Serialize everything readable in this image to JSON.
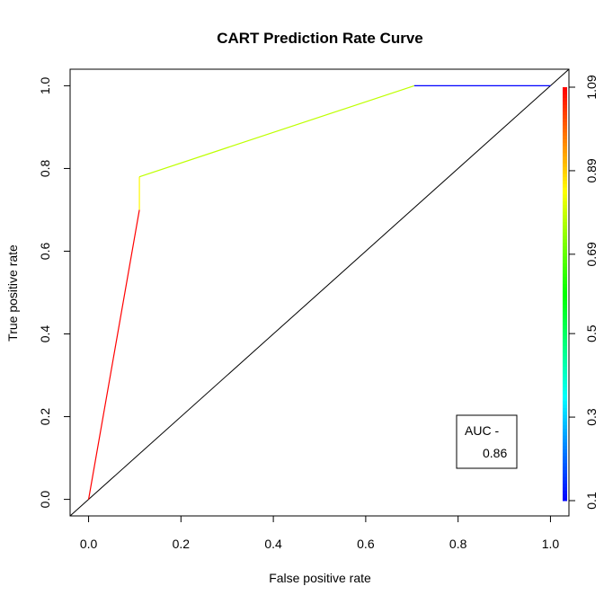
{
  "chart_data": {
    "type": "line",
    "title": "CART Prediction Rate Curve",
    "xlabel": "False positive rate",
    "ylabel": "True positive rate",
    "xlim": [
      -0.04,
      1.04
    ],
    "ylim": [
      -0.04,
      1.04
    ],
    "x_ticks": [
      0.0,
      0.2,
      0.4,
      0.6,
      0.8,
      1.0
    ],
    "x_tick_labels": [
      "0.0",
      "0.2",
      "0.4",
      "0.6",
      "0.8",
      "1.0"
    ],
    "y_ticks": [
      0.0,
      0.2,
      0.4,
      0.6,
      0.8,
      1.0
    ],
    "y_tick_labels": [
      "0.0",
      "0.2",
      "0.4",
      "0.6",
      "0.8",
      "1.0"
    ],
    "series": [
      {
        "name": "ROC",
        "points": [
          {
            "x": 0.0,
            "y": 0.0,
            "cutoff": 1.09
          },
          {
            "x": 0.11,
            "y": 0.7,
            "cutoff": 1.09
          },
          {
            "x": 0.11,
            "y": 0.7,
            "cutoff": 0.85
          },
          {
            "x": 0.11,
            "y": 0.78,
            "cutoff": 0.85
          },
          {
            "x": 0.11,
            "y": 0.78,
            "cutoff": 0.78
          },
          {
            "x": 0.705,
            "y": 1.0,
            "cutoff": 0.78
          },
          {
            "x": 0.705,
            "y": 1.0,
            "cutoff": 0.1
          },
          {
            "x": 1.0,
            "y": 1.0,
            "cutoff": 0.1
          }
        ]
      },
      {
        "name": "diagonal",
        "points": [
          {
            "x": -0.04,
            "y": -0.04
          },
          {
            "x": 1.04,
            "y": 1.04
          }
        ]
      }
    ],
    "colorbar": {
      "min": 0.1,
      "max": 1.09,
      "ticks": [
        0.1,
        0.3,
        0.5,
        0.69,
        0.89,
        1.09
      ],
      "tick_labels": [
        "0.1",
        "0.3",
        "0.5",
        "0.69",
        "0.89",
        "1.09"
      ]
    },
    "legend": {
      "position": "bottom-right",
      "line1": "AUC -",
      "line2": "0.86"
    }
  }
}
